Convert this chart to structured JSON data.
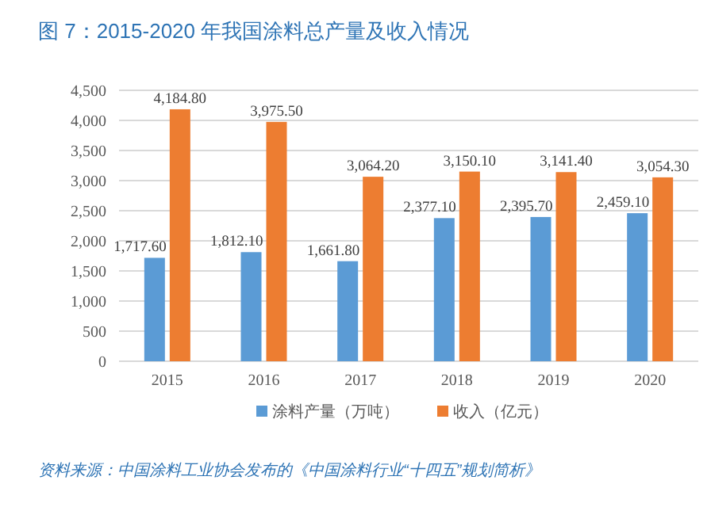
{
  "chart_data": {
    "type": "bar",
    "title": "图 7：2015-2020 年我国涂料总产量及收入情况",
    "categories": [
      "2015",
      "2016",
      "2017",
      "2018",
      "2019",
      "2020"
    ],
    "series": [
      {
        "name": "涂料产量（万吨）",
        "color": "#5b9bd5",
        "values": [
          1717.6,
          1812.1,
          1661.8,
          2377.1,
          2395.7,
          2459.1
        ],
        "value_labels": [
          "1,717.60",
          "1,812.10",
          "1,661.80",
          "2,377.10",
          "2,395.70",
          "2,459.10"
        ]
      },
      {
        "name": "收入（亿元）",
        "color": "#ed7d31",
        "values": [
          4184.8,
          3975.5,
          3064.2,
          3150.1,
          3141.4,
          3054.3
        ],
        "value_labels": [
          "4,184.80",
          "3,975.50",
          "3,064.20",
          "3,150.10",
          "3,141.40",
          "3,054.30"
        ]
      }
    ],
    "ylim": [
      0,
      4500
    ],
    "yticks": [
      {
        "value": 0,
        "label": "0"
      },
      {
        "value": 500,
        "label": "500"
      },
      {
        "value": 1000,
        "label": "1,000"
      },
      {
        "value": 1500,
        "label": "1,500"
      },
      {
        "value": 2000,
        "label": "2,000"
      },
      {
        "value": 2500,
        "label": "2,500"
      },
      {
        "value": 3000,
        "label": "3,000"
      },
      {
        "value": 3500,
        "label": "3,500"
      },
      {
        "value": 4000,
        "label": "4,000"
      },
      {
        "value": 4500,
        "label": "4,500"
      }
    ],
    "grid": "y",
    "legend": "bottom",
    "annotations": [
      "资料来源：中国涂料工业协会发布的《中国涂料行业“十四五”规划简析》"
    ]
  }
}
